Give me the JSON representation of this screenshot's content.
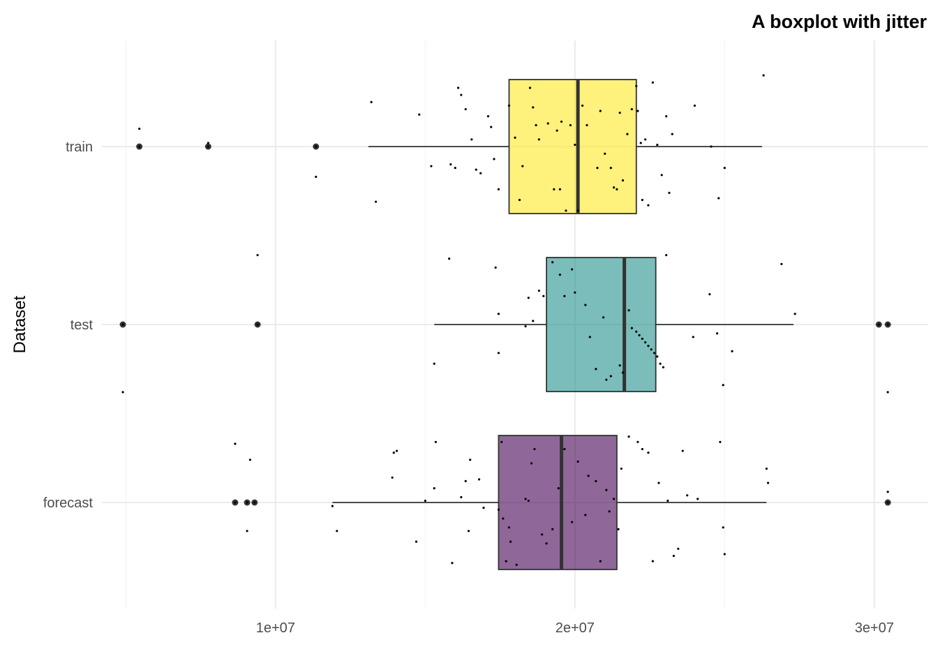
{
  "chart_data": {
    "type": "boxplot",
    "title": "A boxplot with jitter",
    "xlabel": "",
    "ylabel": "Dataset",
    "xlim": [
      4200000,
      31800000
    ],
    "x_ticks": [
      10000000,
      20000000,
      30000000
    ],
    "x_tick_labels": [
      "1e+07",
      "2e+07",
      "3e+07"
    ],
    "grid": true,
    "legend": "none",
    "categories": [
      "forecast",
      "test",
      "train"
    ],
    "series": [
      {
        "category": "train",
        "color": "#fde725",
        "q1": 17800000,
        "median": 20100000,
        "q3": 22050000,
        "whisker_low": 13100000,
        "whisker_high": 26250000,
        "outliers": [
          5450000,
          7750000,
          11350000
        ],
        "points": [
          [
            5450000,
            0.1
          ],
          [
            5450000,
            0.0
          ],
          [
            7750000,
            0.02
          ],
          [
            7750000,
            0.0
          ],
          [
            11350000,
            0.0
          ],
          [
            11350000,
            -0.17
          ],
          [
            13200000,
            0.25
          ],
          [
            13350000,
            -0.31
          ],
          [
            14800000,
            0.18
          ],
          [
            15200000,
            -0.11
          ],
          [
            15850000,
            -0.1
          ],
          [
            16000000,
            -0.12
          ],
          [
            16100000,
            0.33
          ],
          [
            16200000,
            0.29
          ],
          [
            16350000,
            0.21
          ],
          [
            16550000,
            0.04
          ],
          [
            16700000,
            -0.13
          ],
          [
            16850000,
            -0.15
          ],
          [
            17100000,
            0.17
          ],
          [
            17200000,
            0.11
          ],
          [
            17300000,
            -0.07
          ],
          [
            17450000,
            -0.24
          ],
          [
            17800000,
            0.23
          ],
          [
            18000000,
            0.05
          ],
          [
            18150000,
            -0.3
          ],
          [
            18250000,
            -0.11
          ],
          [
            18500000,
            0.33
          ],
          [
            18600000,
            0.22
          ],
          [
            18700000,
            0.12
          ],
          [
            18800000,
            0.04
          ],
          [
            19100000,
            0.13
          ],
          [
            19300000,
            -0.24
          ],
          [
            19400000,
            0.09
          ],
          [
            19500000,
            -0.24
          ],
          [
            19550000,
            0.14
          ],
          [
            19700000,
            -0.36
          ],
          [
            19850000,
            0.12
          ],
          [
            20000000,
            0.01
          ],
          [
            20100000,
            -0.36
          ],
          [
            20250000,
            0.23
          ],
          [
            20400000,
            0.12
          ],
          [
            20750000,
            -0.12
          ],
          [
            20850000,
            0.2
          ],
          [
            21000000,
            -0.04
          ],
          [
            21200000,
            -0.12
          ],
          [
            21300000,
            -0.23
          ],
          [
            21400000,
            -0.24
          ],
          [
            21500000,
            0.19
          ],
          [
            21600000,
            -0.19
          ],
          [
            21750000,
            0.07
          ],
          [
            21900000,
            0.21
          ],
          [
            22050000,
            0.34
          ],
          [
            22100000,
            0.2
          ],
          [
            22200000,
            0.02
          ],
          [
            22250000,
            -0.3
          ],
          [
            22350000,
            0.04
          ],
          [
            22450000,
            -0.33
          ],
          [
            22600000,
            0.36
          ],
          [
            22750000,
            0.01
          ],
          [
            22900000,
            -0.16
          ],
          [
            23050000,
            0.17
          ],
          [
            23150000,
            -0.26
          ],
          [
            23250000,
            0.07
          ],
          [
            24000000,
            0.23
          ],
          [
            24550000,
            0.0
          ],
          [
            24800000,
            -0.29
          ],
          [
            25000000,
            -0.12
          ],
          [
            26300000,
            0.4
          ]
        ]
      },
      {
        "category": "test",
        "color": "#21918c",
        "q1": 19050000,
        "median": 21650000,
        "q3": 22700000,
        "whisker_low": 15300000,
        "whisker_high": 27300000,
        "outliers": [
          4900000,
          9400000,
          30150000,
          30450000
        ],
        "points": [
          [
            4900000,
            0.0
          ],
          [
            4900000,
            -0.38
          ],
          [
            9400000,
            0.0
          ],
          [
            9400000,
            0.39
          ],
          [
            15300000,
            -0.22
          ],
          [
            15800000,
            0.37
          ],
          [
            17350000,
            0.32
          ],
          [
            17450000,
            0.06
          ],
          [
            17450000,
            -0.16
          ],
          [
            18350000,
            -0.01
          ],
          [
            18450000,
            0.15
          ],
          [
            18600000,
            0.02
          ],
          [
            18800000,
            0.19
          ],
          [
            18950000,
            0.16
          ],
          [
            19250000,
            0.35
          ],
          [
            19500000,
            0.28
          ],
          [
            19650000,
            0.16
          ],
          [
            19900000,
            0.31
          ],
          [
            20000000,
            0.18
          ],
          [
            20350000,
            0.11
          ],
          [
            20500000,
            -0.07
          ],
          [
            20700000,
            -0.25
          ],
          [
            20950000,
            0.04
          ],
          [
            21050000,
            -0.31
          ],
          [
            21200000,
            -0.29
          ],
          [
            21500000,
            -0.23
          ],
          [
            21600000,
            -0.27
          ],
          [
            21800000,
            0.08
          ],
          [
            21900000,
            -0.02
          ],
          [
            22050000,
            -0.04
          ],
          [
            22150000,
            -0.06
          ],
          [
            22250000,
            -0.08
          ],
          [
            22350000,
            -0.1
          ],
          [
            22450000,
            -0.12
          ],
          [
            22550000,
            -0.14
          ],
          [
            22650000,
            -0.16
          ],
          [
            22750000,
            -0.18
          ],
          [
            22850000,
            -0.22
          ],
          [
            22950000,
            -0.24
          ],
          [
            23050000,
            0.39
          ],
          [
            23950000,
            -0.07
          ],
          [
            24500000,
            0.17
          ],
          [
            24750000,
            -0.05
          ],
          [
            24950000,
            -0.34
          ],
          [
            25250000,
            -0.15
          ],
          [
            26900000,
            0.34
          ],
          [
            27350000,
            0.06
          ],
          [
            30150000,
            0.0
          ],
          [
            30450000,
            0.0
          ],
          [
            30450000,
            -0.38
          ]
        ]
      },
      {
        "category": "forecast",
        "color": "#440154",
        "q1": 17450000,
        "median": 19550000,
        "q3": 21400000,
        "whisker_low": 11900000,
        "whisker_high": 26400000,
        "outliers": [
          8650000,
          9050000,
          9300000,
          30450000
        ],
        "points": [
          [
            8650000,
            0.33
          ],
          [
            8650000,
            0.0
          ],
          [
            9050000,
            0.0
          ],
          [
            9050000,
            -0.16
          ],
          [
            9150000,
            0.24
          ],
          [
            9300000,
            0.0
          ],
          [
            11900000,
            -0.02
          ],
          [
            12050000,
            -0.16
          ],
          [
            13900000,
            0.14
          ],
          [
            13950000,
            0.28
          ],
          [
            14050000,
            0.29
          ],
          [
            14700000,
            -0.22
          ],
          [
            15000000,
            0.01
          ],
          [
            15300000,
            0.08
          ],
          [
            15350000,
            0.34
          ],
          [
            15900000,
            -0.34
          ],
          [
            16200000,
            0.03
          ],
          [
            16350000,
            0.12
          ],
          [
            16450000,
            -0.16
          ],
          [
            16500000,
            0.24
          ],
          [
            16800000,
            0.13
          ],
          [
            16950000,
            -0.03
          ],
          [
            17450000,
            -0.04
          ],
          [
            17550000,
            0.34
          ],
          [
            17600000,
            -0.09
          ],
          [
            17700000,
            -0.33
          ],
          [
            17800000,
            -0.14
          ],
          [
            17850000,
            -0.22
          ],
          [
            18050000,
            -0.35
          ],
          [
            18350000,
            0.02
          ],
          [
            18450000,
            0.01
          ],
          [
            18550000,
            0.22
          ],
          [
            18650000,
            0.3
          ],
          [
            18900000,
            -0.18
          ],
          [
            19050000,
            -0.23
          ],
          [
            19250000,
            -0.15
          ],
          [
            19450000,
            0.08
          ],
          [
            19650000,
            0.3
          ],
          [
            19900000,
            -0.11
          ],
          [
            20100000,
            0.23
          ],
          [
            20350000,
            -0.07
          ],
          [
            20450000,
            0.15
          ],
          [
            20700000,
            0.12
          ],
          [
            20850000,
            -0.33
          ],
          [
            21050000,
            0.07
          ],
          [
            21150000,
            -0.05
          ],
          [
            21300000,
            0.02
          ],
          [
            21450000,
            -0.15
          ],
          [
            21550000,
            0.19
          ],
          [
            21800000,
            0.37
          ],
          [
            22100000,
            0.34
          ],
          [
            22250000,
            0.3
          ],
          [
            22450000,
            0.28
          ],
          [
            22600000,
            -0.33
          ],
          [
            22800000,
            0.11
          ],
          [
            23100000,
            0.01
          ],
          [
            23300000,
            -0.3
          ],
          [
            23450000,
            -0.26
          ],
          [
            23600000,
            0.29
          ],
          [
            23750000,
            0.04
          ],
          [
            24100000,
            0.02
          ],
          [
            24850000,
            0.34
          ],
          [
            24950000,
            -0.14
          ],
          [
            25000000,
            -0.29
          ],
          [
            26400000,
            0.19
          ],
          [
            26450000,
            0.11
          ],
          [
            30450000,
            0.06
          ],
          [
            30450000,
            0.0
          ]
        ]
      }
    ]
  }
}
